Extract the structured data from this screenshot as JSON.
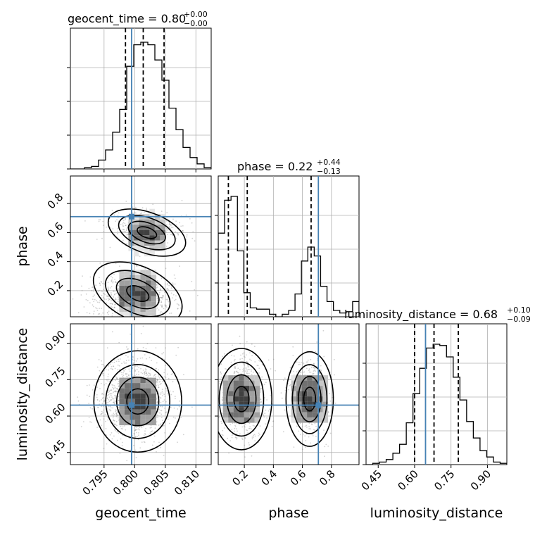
{
  "colors": {
    "truth": "#4682b4",
    "ink": "#000000",
    "grid": "#b0b0b0",
    "scatter": "#7f7f7f"
  },
  "panels": {
    "geocent_time": {
      "title_main": "geocent_time = 0.80",
      "title_sup": "+0.00",
      "title_sub": "−0.00"
    },
    "phase": {
      "title_main": "phase = 0.22",
      "title_sup": "+0.44",
      "title_sub": "−0.13"
    },
    "luminosity_distance": {
      "title_main": "luminosity_distance = 0.68",
      "title_sup": "+0.10",
      "title_sub": "−0.09"
    }
  },
  "axis_labels": {
    "x_geocent_time": "geocent_time",
    "x_phase": "phase",
    "x_luminosity_distance": "luminosity_distance",
    "y_phase": "phase",
    "y_luminosity_distance": "luminosity_distance"
  },
  "chart_data": {
    "type": "corner",
    "parameters": [
      "geocent_time",
      "phase",
      "luminosity_distance"
    ],
    "ranges": {
      "geocent_time": [
        0.7895,
        0.8125
      ],
      "phase": [
        0.02,
        0.99
      ],
      "luminosity_distance": [
        0.4,
        0.98
      ]
    },
    "ticks": {
      "geocent_time": [
        0.795,
        0.8,
        0.805,
        0.81
      ],
      "phase": [
        0.2,
        0.4,
        0.6,
        0.8
      ],
      "luminosity_distance": [
        0.45,
        0.6,
        0.75,
        0.9
      ]
    },
    "tick_labels": {
      "geocent_time": [
        "0.795",
        "0.800",
        "0.805",
        "0.810"
      ],
      "phase_x": [
        "0.2",
        "0.4",
        "0.6",
        "0.8"
      ],
      "phase_y": [
        "0.2",
        "0.4",
        "0.6",
        "0.8"
      ],
      "luminosity_distance": [
        "0.45",
        "0.60",
        "0.75",
        "0.90"
      ]
    },
    "truths": {
      "geocent_time": 0.7995,
      "phase": 0.71,
      "luminosity_distance": 0.645
    },
    "quantiles": {
      "geocent_time": [
        0.7985,
        0.8014,
        0.8048
      ],
      "phase": [
        0.09,
        0.22,
        0.66
      ],
      "luminosity_distance": [
        0.6,
        0.68,
        0.78
      ]
    },
    "histograms": {
      "geocent_time": [
        0.0,
        0.0,
        0.01,
        0.02,
        0.07,
        0.15,
        0.29,
        0.47,
        0.81,
        0.98,
        1.0,
        0.98,
        0.86,
        0.7,
        0.48,
        0.31,
        0.17,
        0.09,
        0.04,
        0.01
      ],
      "phase": [
        0.66,
        0.92,
        0.95,
        0.52,
        0.19,
        0.07,
        0.06,
        0.06,
        0.02,
        0.0,
        0.02,
        0.05,
        0.18,
        0.44,
        0.55,
        0.48,
        0.24,
        0.12,
        0.05,
        0.03,
        0.04,
        0.12
      ],
      "luminosity_distance": [
        0.0,
        0.01,
        0.02,
        0.04,
        0.09,
        0.16,
        0.33,
        0.56,
        0.76,
        0.92,
        0.95,
        0.94,
        0.85,
        0.69,
        0.51,
        0.34,
        0.21,
        0.11,
        0.06,
        0.02,
        0.01
      ]
    },
    "modes": {
      "geocent_time_phase": [
        [
          0.8005,
          0.18
        ],
        [
          0.802,
          0.6
        ]
      ],
      "geocent_time_luminosity_distance": [
        [
          0.8005,
          0.66
        ]
      ],
      "phase_luminosity_distance": [
        [
          0.18,
          0.67
        ],
        [
          0.65,
          0.67
        ]
      ]
    },
    "grid": true
  }
}
